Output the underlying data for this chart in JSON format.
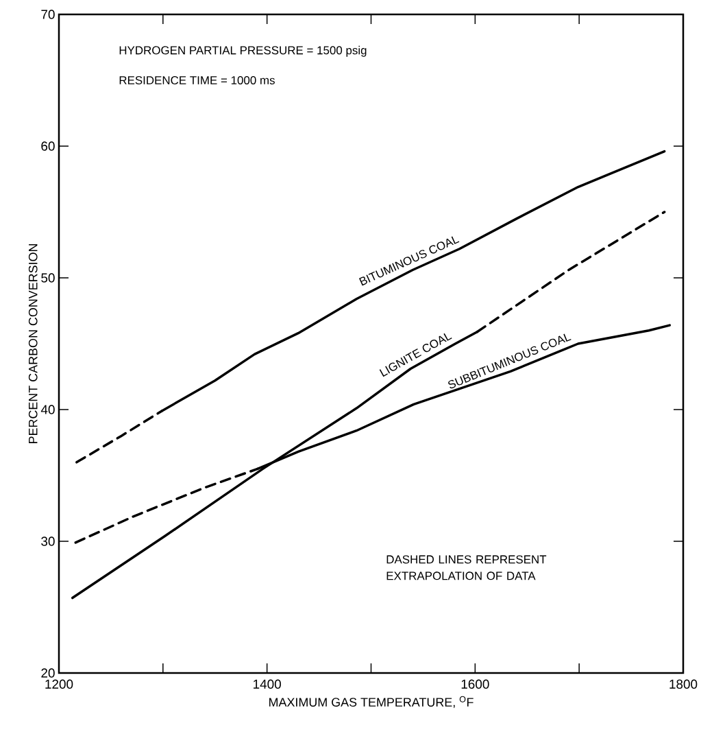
{
  "chart_data": {
    "type": "line",
    "xlabel": "MAXIMUM GAS TEMPERATURE, $^{O}$F",
    "ylabel": "PERCENT CARBON CONVERSION",
    "annotations": [
      "HYDROGEN PARTIAL PRESSURE = 1500 psig",
      "RESIDENCE TIME = 1000 ms",
      "DASHED LINES REPRESENT EXTRAPOLATION OF DATA"
    ],
    "xlim": [
      1200,
      1800
    ],
    "ylim": [
      20,
      70
    ],
    "xticks": [
      1200,
      {
        "value": 1300,
        "label": null
      },
      1400,
      {
        "value": 1500,
        "label": null
      },
      1600,
      {
        "value": 1700,
        "label": null
      },
      1800
    ],
    "yticks": [
      20,
      30,
      40,
      50,
      60,
      70
    ],
    "grid": false,
    "legend": false,
    "series": [
      {
        "name": "BITUMINOUS COAL",
        "color": "#000000",
        "line_style": "solid",
        "x": [
          1299,
          1350,
          1388,
          1430,
          1486,
          1540,
          1585,
          1640,
          1699,
          1782
        ],
        "values": [
          39.9,
          42.2,
          44.2,
          45.8,
          48.4,
          50.6,
          52.2,
          54.5,
          56.9,
          59.6
        ]
      },
      {
        "color": "#000000",
        "line_style": "dashed",
        "x": [
          1217,
          1260,
          1299
        ],
        "values": [
          36.0,
          38.0,
          39.9
        ]
      },
      {
        "name": "LIGNITE COAL",
        "color": "#000000",
        "line_style": "solid",
        "x": [
          1213,
          1302,
          1396,
          1486,
          1538,
          1581,
          1602
        ],
        "values": [
          25.7,
          30.4,
          35.5,
          40.1,
          43.1,
          45.0,
          45.9
        ]
      },
      {
        "color": "#000000",
        "line_style": "dashed",
        "x": [
          1602,
          1690,
          1782
        ],
        "values": [
          45.9,
          50.6,
          55.0
        ]
      },
      {
        "name": "SUBBITUMINOUS COAL",
        "color": "#000000",
        "line_style": "solid",
        "x": [
          1391,
          1430,
          1486,
          1541,
          1634,
          1699,
          1767,
          1787
        ],
        "values": [
          35.5,
          36.8,
          38.4,
          40.4,
          42.9,
          45.0,
          46.0,
          46.4
        ]
      },
      {
        "color": "#000000",
        "line_style": "dashed",
        "x": [
          1216,
          1272,
          1341,
          1391
        ],
        "values": [
          29.9,
          31.9,
          34.1,
          35.5
        ]
      }
    ]
  }
}
